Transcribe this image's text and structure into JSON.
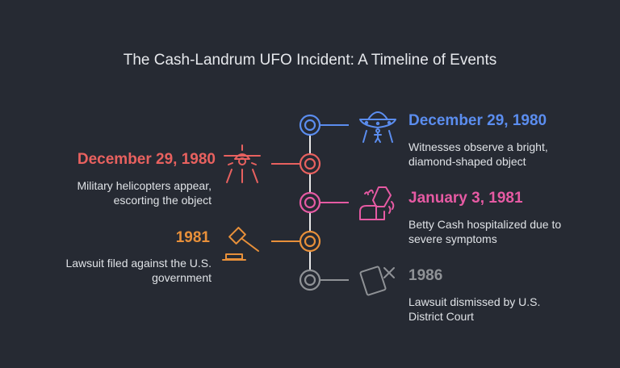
{
  "title": "The Cash-Landrum UFO Incident: A Timeline of Events",
  "colors": {
    "background": "#262a33",
    "axis": "#e8e8e8",
    "blue": "#5b8def",
    "red": "#e8615f",
    "pink": "#e65aa3",
    "orange": "#e8903a",
    "gray": "#8f9296"
  },
  "events": [
    {
      "date": "December 29, 1980",
      "description": "Witnesses observe a bright, diamond-shaped object",
      "side": "right",
      "color": "blue",
      "icon": "ufo-icon"
    },
    {
      "date": "December 29, 1980",
      "description": "Military helicopters appear, escorting the object",
      "side": "left",
      "color": "red",
      "icon": "helicopter-icon"
    },
    {
      "date": "January 3, 1981",
      "description": "Betty Cash hospitalized due to severe symptoms",
      "side": "right",
      "color": "pink",
      "icon": "hospital-bed-icon"
    },
    {
      "date": "1981",
      "description": "Lawsuit filed against the U.S. government",
      "side": "left",
      "color": "orange",
      "icon": "gavel-icon"
    },
    {
      "date": "1986",
      "description": "Lawsuit dismissed by U.S. District Court",
      "side": "right",
      "color": "gray",
      "icon": "dismissed-icon"
    }
  ]
}
